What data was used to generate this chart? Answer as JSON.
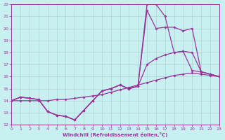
{
  "xlabel": "Windchill (Refroidissement éolien,°C)",
  "bg_color": "#c8f0f0",
  "line_color": "#993399",
  "grid_color": "#aacccc",
  "xlim": [
    0,
    23
  ],
  "ylim": [
    12,
    22
  ],
  "s1_x": [
    0,
    1,
    2,
    3,
    4,
    5,
    6,
    7,
    8,
    9,
    10,
    11,
    12,
    13,
    14,
    15,
    16,
    17,
    18,
    19,
    20,
    21,
    22,
    23
  ],
  "s1_y": [
    14.0,
    14.0,
    14.0,
    14.0,
    14.0,
    14.1,
    14.1,
    14.2,
    14.3,
    14.4,
    14.5,
    14.7,
    14.9,
    15.1,
    15.3,
    15.5,
    15.7,
    15.9,
    16.1,
    16.2,
    16.3,
    16.2,
    16.1,
    16.0
  ],
  "s2_x": [
    0,
    1,
    2,
    3,
    4,
    5,
    6,
    7,
    8,
    9,
    10,
    11,
    12,
    13,
    14,
    15,
    16,
    17,
    18,
    19,
    20,
    21,
    22,
    23
  ],
  "s2_y": [
    14.0,
    14.3,
    14.2,
    14.1,
    13.1,
    12.8,
    12.7,
    12.4,
    13.2,
    14.0,
    14.8,
    15.0,
    15.3,
    15.0,
    15.2,
    17.0,
    17.5,
    17.8,
    18.0,
    18.1,
    18.0,
    16.4,
    16.2,
    16.0
  ],
  "s3_x": [
    0,
    1,
    2,
    3,
    4,
    5,
    6,
    7,
    8,
    9,
    10,
    11,
    12,
    13,
    14,
    15,
    16,
    17,
    18,
    19,
    20,
    21,
    22,
    23
  ],
  "s3_y": [
    14.0,
    14.3,
    14.2,
    14.1,
    13.1,
    12.8,
    12.7,
    12.4,
    13.2,
    14.0,
    14.8,
    15.0,
    15.3,
    15.0,
    15.2,
    21.5,
    20.0,
    20.1,
    20.1,
    19.8,
    20.0,
    16.4,
    16.2,
    16.0
  ],
  "s4_x": [
    0,
    1,
    2,
    3,
    4,
    5,
    6,
    7,
    8,
    9,
    10,
    11,
    12,
    13,
    14,
    15,
    16,
    17,
    18,
    19,
    20,
    21,
    22,
    23
  ],
  "s4_y": [
    14.0,
    14.3,
    14.2,
    14.1,
    13.1,
    12.8,
    12.7,
    12.4,
    13.2,
    14.0,
    14.8,
    15.0,
    15.3,
    15.0,
    15.2,
    22.0,
    22.0,
    21.0,
    18.0,
    18.1,
    16.5,
    16.4,
    16.2,
    16.0
  ]
}
